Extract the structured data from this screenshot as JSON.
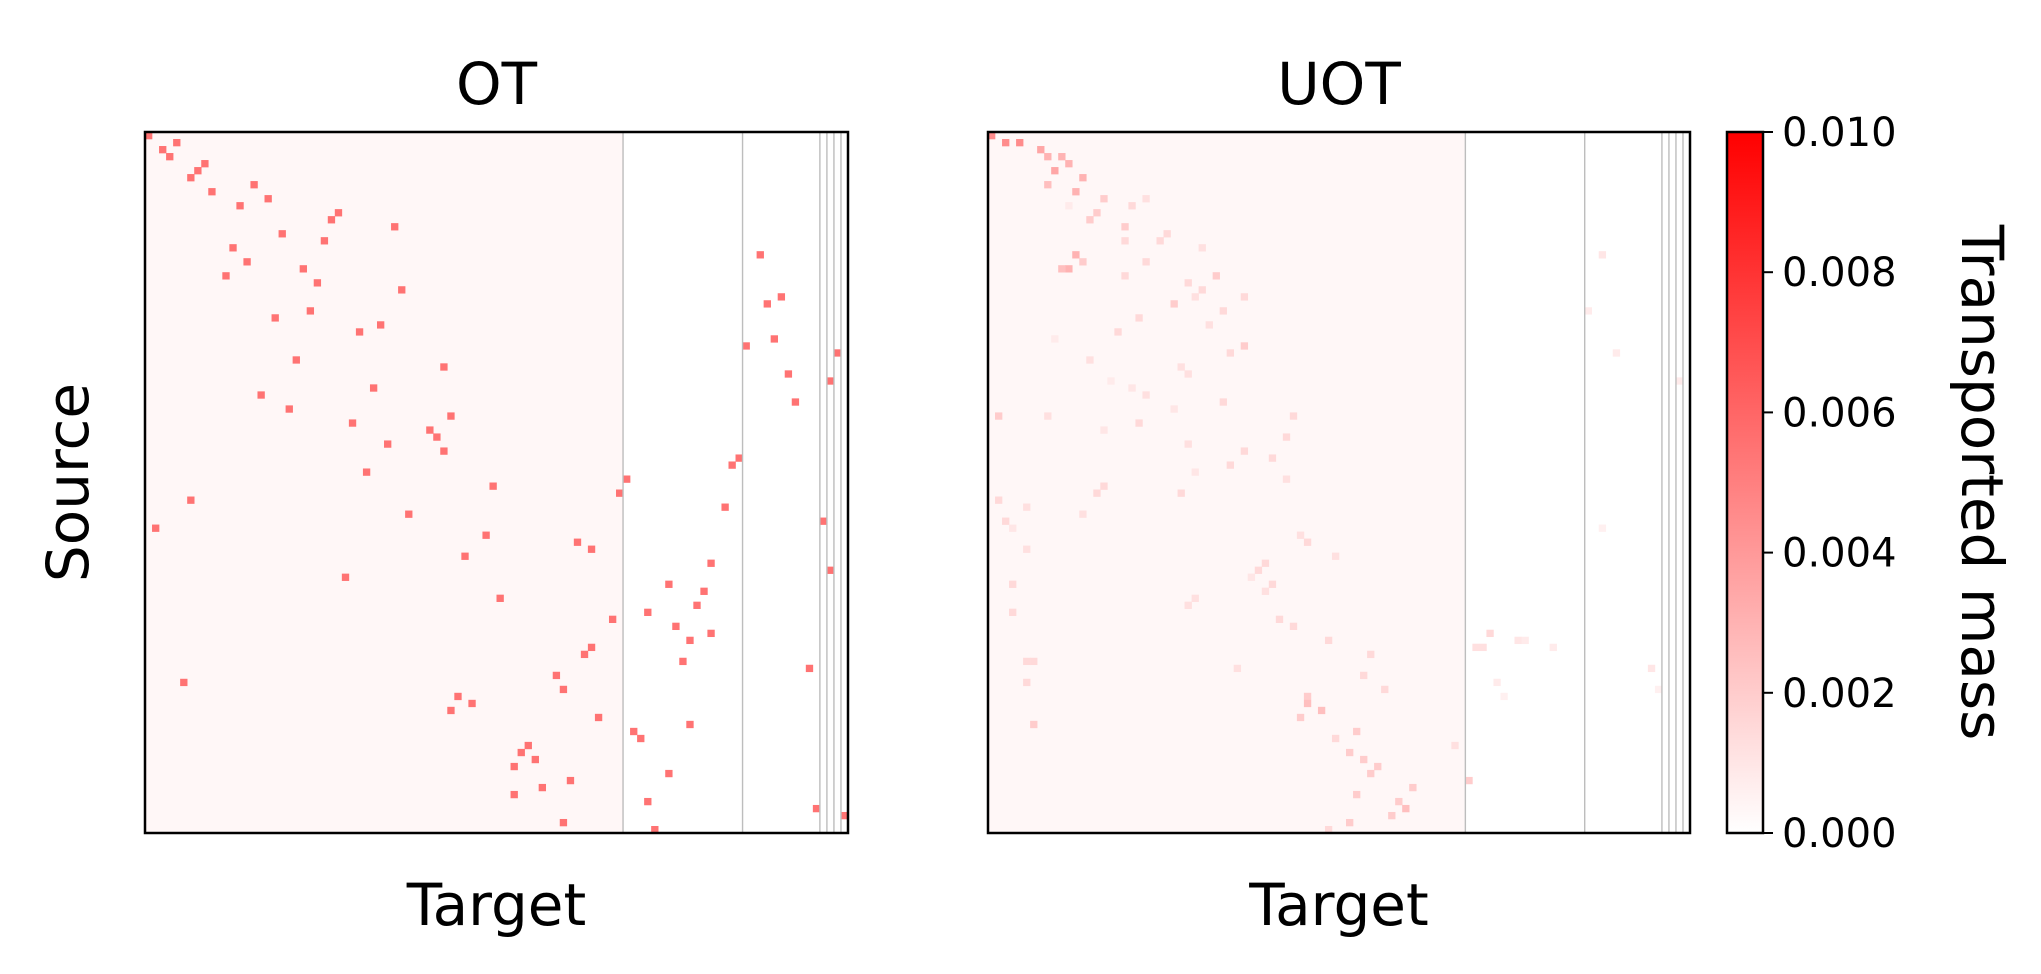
{
  "figure": {
    "colorbar_label": "Transported mass",
    "colorbar_ticks": [
      "0.000",
      "0.002",
      "0.004",
      "0.006",
      "0.008",
      "0.010"
    ],
    "colormap": {
      "low": "#ffffff",
      "high": "#ff0000"
    }
  },
  "chart_data": [
    {
      "type": "heatmap",
      "title": "OT",
      "xlabel": "Target",
      "ylabel": "Source",
      "n_rows": 100,
      "n_cols": 100,
      "value_range": [
        0,
        0.01
      ],
      "background_block": {
        "rows": [
          0,
          100
        ],
        "cols": [
          0,
          68
        ],
        "value": 0.0003
      },
      "column_separators": [
        68,
        85,
        96,
        97,
        98,
        99
      ],
      "cells": [
        [
          0,
          0,
          0.0055
        ],
        [
          1,
          4,
          0.0055
        ],
        [
          2,
          2,
          0.0055
        ],
        [
          3,
          3,
          0.0055
        ],
        [
          4,
          8,
          0.0055
        ],
        [
          5,
          7,
          0.0055
        ],
        [
          6,
          6,
          0.0055
        ],
        [
          7,
          15,
          0.0055
        ],
        [
          8,
          9,
          0.0055
        ],
        [
          9,
          17,
          0.0055
        ],
        [
          10,
          13,
          0.0055
        ],
        [
          11,
          27,
          0.0055
        ],
        [
          12,
          26,
          0.0055
        ],
        [
          13,
          35,
          0.0055
        ],
        [
          14,
          19,
          0.0055
        ],
        [
          15,
          25,
          0.0055
        ],
        [
          16,
          12,
          0.0055
        ],
        [
          17,
          87,
          0.0055
        ],
        [
          18,
          14,
          0.0055
        ],
        [
          19,
          22,
          0.0055
        ],
        [
          20,
          11,
          0.0055
        ],
        [
          21,
          24,
          0.0055
        ],
        [
          22,
          36,
          0.0055
        ],
        [
          23,
          90,
          0.0055
        ],
        [
          24,
          88,
          0.0055
        ],
        [
          25,
          23,
          0.0055
        ],
        [
          26,
          18,
          0.0055
        ],
        [
          27,
          33,
          0.0055
        ],
        [
          28,
          30,
          0.0055
        ],
        [
          29,
          89,
          0.0055
        ],
        [
          30,
          85,
          0.0055
        ],
        [
          31,
          98,
          0.0055
        ],
        [
          32,
          21,
          0.0055
        ],
        [
          33,
          42,
          0.0055
        ],
        [
          34,
          91,
          0.0055
        ],
        [
          35,
          97,
          0.0055
        ],
        [
          36,
          32,
          0.0055
        ],
        [
          37,
          16,
          0.0055
        ],
        [
          38,
          92,
          0.0055
        ],
        [
          39,
          20,
          0.0055
        ],
        [
          40,
          43,
          0.0055
        ],
        [
          41,
          29,
          0.0055
        ],
        [
          42,
          40,
          0.0055
        ],
        [
          43,
          41,
          0.0055
        ],
        [
          44,
          34,
          0.0055
        ],
        [
          45,
          42,
          0.0055
        ],
        [
          46,
          84,
          0.0055
        ],
        [
          47,
          83,
          0.0055
        ],
        [
          48,
          31,
          0.0055
        ],
        [
          49,
          68,
          0.0055
        ],
        [
          50,
          49,
          0.0055
        ],
        [
          51,
          67,
          0.0055
        ],
        [
          52,
          6,
          0.0055
        ],
        [
          53,
          82,
          0.0055
        ],
        [
          54,
          37,
          0.0055
        ],
        [
          55,
          96,
          0.0055
        ],
        [
          56,
          1,
          0.0055
        ],
        [
          57,
          48,
          0.0055
        ],
        [
          58,
          61,
          0.0055
        ],
        [
          59,
          63,
          0.0055
        ],
        [
          60,
          45,
          0.0055
        ],
        [
          61,
          80,
          0.0055
        ],
        [
          62,
          97,
          0.0055
        ],
        [
          63,
          28,
          0.0055
        ],
        [
          64,
          74,
          0.0055
        ],
        [
          65,
          79,
          0.0055
        ],
        [
          66,
          50,
          0.0055
        ],
        [
          67,
          78,
          0.0055
        ],
        [
          68,
          71,
          0.0055
        ],
        [
          69,
          66,
          0.0055
        ],
        [
          70,
          75,
          0.0055
        ],
        [
          71,
          80,
          0.0055
        ],
        [
          72,
          77,
          0.0055
        ],
        [
          73,
          63,
          0.0055
        ],
        [
          74,
          62,
          0.0055
        ],
        [
          75,
          76,
          0.0055
        ],
        [
          76,
          94,
          0.0055
        ],
        [
          77,
          58,
          0.0055
        ],
        [
          78,
          5,
          0.0055
        ],
        [
          79,
          59,
          0.0055
        ],
        [
          80,
          44,
          0.0055
        ],
        [
          81,
          46,
          0.0055
        ],
        [
          82,
          43,
          0.0055
        ],
        [
          83,
          64,
          0.0055
        ],
        [
          84,
          77,
          0.0055
        ],
        [
          85,
          69,
          0.0055
        ],
        [
          86,
          70,
          0.0055
        ],
        [
          87,
          54,
          0.0055
        ],
        [
          88,
          53,
          0.0055
        ],
        [
          89,
          55,
          0.0055
        ],
        [
          90,
          52,
          0.0055
        ],
        [
          91,
          74,
          0.0055
        ],
        [
          92,
          60,
          0.0055
        ],
        [
          93,
          56,
          0.0055
        ],
        [
          94,
          52,
          0.0055
        ],
        [
          95,
          71,
          0.0055
        ],
        [
          96,
          95,
          0.0055
        ],
        [
          97,
          99,
          0.0055
        ],
        [
          98,
          59,
          0.0055
        ],
        [
          99,
          72,
          0.0055
        ]
      ]
    },
    {
      "type": "heatmap",
      "title": "UOT",
      "xlabel": "Target",
      "ylabel": "",
      "n_rows": 100,
      "n_cols": 100,
      "value_range": [
        0,
        0.01
      ],
      "background_block": {
        "rows": [
          0,
          100
        ],
        "cols": [
          0,
          68
        ],
        "value": 0.0003
      },
      "column_separators": [
        68,
        85,
        96,
        97,
        98,
        99
      ],
      "cells": [
        [
          0,
          0,
          0.0045
        ],
        [
          1,
          2,
          0.0045
        ],
        [
          1,
          4,
          0.0045
        ],
        [
          2,
          7,
          0.0035
        ],
        [
          3,
          10,
          0.003
        ],
        [
          3,
          8,
          0.003
        ],
        [
          4,
          11,
          0.003
        ],
        [
          5,
          9,
          0.0035
        ],
        [
          6,
          13,
          0.003
        ],
        [
          7,
          8,
          0.0025
        ],
        [
          8,
          12,
          0.003
        ],
        [
          9,
          16,
          0.002
        ],
        [
          9,
          22,
          0.0012
        ],
        [
          10,
          11,
          0.0008
        ],
        [
          10,
          20,
          0.0015
        ],
        [
          11,
          15,
          0.002
        ],
        [
          12,
          14,
          0.002
        ],
        [
          13,
          19,
          0.002
        ],
        [
          14,
          25,
          0.0015
        ],
        [
          15,
          19,
          0.0015
        ],
        [
          15,
          24,
          0.0015
        ],
        [
          16,
          30,
          0.0012
        ],
        [
          17,
          12,
          0.003
        ],
        [
          18,
          13,
          0.002
        ],
        [
          18,
          22,
          0.0015
        ],
        [
          19,
          11,
          0.003
        ],
        [
          19,
          10,
          0.0025
        ],
        [
          20,
          19,
          0.0015
        ],
        [
          20,
          32,
          0.002
        ],
        [
          21,
          28,
          0.0015
        ],
        [
          22,
          30,
          0.0015
        ],
        [
          23,
          29,
          0.0012
        ],
        [
          23,
          36,
          0.0015
        ],
        [
          24,
          26,
          0.002
        ],
        [
          25,
          33,
          0.0015
        ],
        [
          26,
          21,
          0.0015
        ],
        [
          27,
          31,
          0.0012
        ],
        [
          28,
          18,
          0.0015
        ],
        [
          29,
          9,
          0.0008
        ],
        [
          30,
          36,
          0.002
        ],
        [
          31,
          34,
          0.0015
        ],
        [
          32,
          14,
          0.0012
        ],
        [
          33,
          27,
          0.0012
        ],
        [
          34,
          28,
          0.0012
        ],
        [
          35,
          17,
          0.0008
        ],
        [
          36,
          20,
          0.001
        ],
        [
          37,
          22,
          0.0012
        ],
        [
          38,
          33,
          0.0015
        ],
        [
          39,
          26,
          0.001
        ],
        [
          40,
          1,
          0.002
        ],
        [
          40,
          8,
          0.0012
        ],
        [
          40,
          43,
          0.0015
        ],
        [
          41,
          21,
          0.0015
        ],
        [
          42,
          16,
          0.001
        ],
        [
          43,
          42,
          0.0015
        ],
        [
          44,
          28,
          0.0012
        ],
        [
          45,
          36,
          0.0015
        ],
        [
          46,
          40,
          0.0015
        ],
        [
          47,
          34,
          0.0015
        ],
        [
          48,
          29,
          0.001
        ],
        [
          49,
          42,
          0.0012
        ],
        [
          50,
          16,
          0.0015
        ],
        [
          51,
          27,
          0.0015
        ],
        [
          51,
          15,
          0.0015
        ],
        [
          52,
          1,
          0.0015
        ],
        [
          53,
          5,
          0.0012
        ],
        [
          54,
          13,
          0.0012
        ],
        [
          55,
          2,
          0.0015
        ],
        [
          56,
          3,
          0.001
        ],
        [
          57,
          44,
          0.0012
        ],
        [
          58,
          45,
          0.0015
        ],
        [
          59,
          5,
          0.0012
        ],
        [
          60,
          49,
          0.0012
        ],
        [
          61,
          39,
          0.0015
        ],
        [
          62,
          38,
          0.0015
        ],
        [
          63,
          37,
          0.001
        ],
        [
          64,
          3,
          0.0015
        ],
        [
          64,
          40,
          0.0015
        ],
        [
          65,
          39,
          0.0012
        ],
        [
          66,
          29,
          0.0012
        ],
        [
          67,
          28,
          0.0012
        ],
        [
          68,
          3,
          0.0015
        ],
        [
          69,
          41,
          0.0015
        ],
        [
          70,
          43,
          0.0015
        ],
        [
          71,
          71,
          0.0015
        ],
        [
          72,
          48,
          0.0015
        ],
        [
          73,
          69,
          0.0012
        ],
        [
          73,
          70,
          0.0012
        ],
        [
          74,
          54,
          0.0015
        ],
        [
          75,
          5,
          0.0015
        ],
        [
          75,
          6,
          0.0015
        ],
        [
          76,
          35,
          0.0012
        ],
        [
          77,
          53,
          0.0015
        ],
        [
          78,
          5,
          0.0015
        ],
        [
          79,
          56,
          0.0015
        ],
        [
          80,
          45,
          0.002
        ],
        [
          81,
          45,
          0.0025
        ],
        [
          82,
          47,
          0.0025
        ],
        [
          83,
          44,
          0.002
        ],
        [
          84,
          6,
          0.002
        ],
        [
          85,
          52,
          0.002
        ],
        [
          86,
          49,
          0.0015
        ],
        [
          87,
          66,
          0.0012
        ],
        [
          88,
          51,
          0.002
        ],
        [
          89,
          53,
          0.002
        ],
        [
          90,
          55,
          0.002
        ],
        [
          91,
          54,
          0.002
        ],
        [
          92,
          68,
          0.002
        ],
        [
          93,
          60,
          0.002
        ],
        [
          94,
          52,
          0.002
        ],
        [
          95,
          58,
          0.002
        ],
        [
          96,
          59,
          0.0025
        ],
        [
          97,
          57,
          0.002
        ],
        [
          98,
          51,
          0.002
        ],
        [
          99,
          48,
          0.0015
        ],
        [
          17,
          87,
          0.001
        ],
        [
          25,
          85,
          0.0008
        ],
        [
          31,
          89,
          0.0008
        ],
        [
          35,
          98,
          0.0008
        ],
        [
          56,
          87,
          0.0006
        ],
        [
          72,
          75,
          0.001
        ],
        [
          72,
          76,
          0.0008
        ],
        [
          73,
          80,
          0.0008
        ],
        [
          76,
          94,
          0.001
        ],
        [
          78,
          72,
          0.0008
        ],
        [
          79,
          95,
          0.0006
        ],
        [
          80,
          73,
          0.0006
        ]
      ]
    }
  ]
}
